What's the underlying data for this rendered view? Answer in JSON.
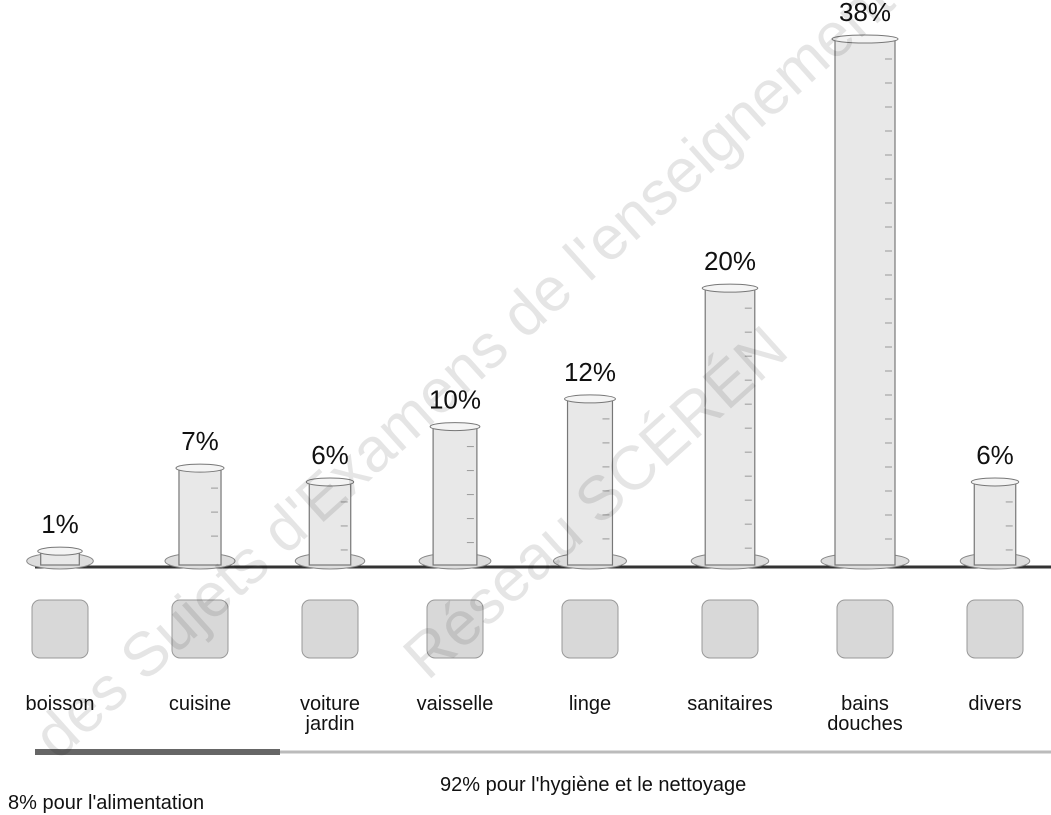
{
  "chart_data": {
    "type": "cylinder",
    "categories": [
      "boisson",
      "cuisine",
      "voiture\njardin",
      "vaisselle",
      "linge",
      "sanitaires",
      "bains\ndouches",
      "divers"
    ],
    "values": [
      1,
      7,
      6,
      10,
      12,
      20,
      38,
      6
    ],
    "value_labels": [
      "1%",
      "7%",
      "6%",
      "10%",
      "12%",
      "20%",
      "38%",
      "6%"
    ],
    "color": "#e8e8e8",
    "groups": [
      "8% pour l'alimentation",
      "92% pour l'hygiène et le nettoyage"
    ],
    "watermark": [
      "des Sujets d'Examens de l'enseignement",
      "Réseau SCÉRÉN"
    ]
  }
}
